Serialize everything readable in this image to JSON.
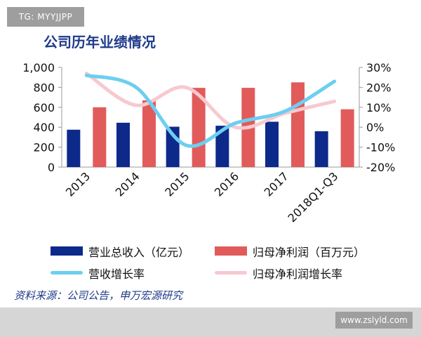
{
  "watermark_top": "TG: MYYJJPP",
  "watermark_bottom": "www.zslyld.com",
  "source_note": "资料来源：公司公告，申万宏源研究",
  "chart_data": {
    "type": "bar",
    "title": "公司历年业绩情况",
    "categories": [
      "2013",
      "2014",
      "2015",
      "2016",
      "2017",
      "2018Q1-Q3"
    ],
    "series": [
      {
        "name": "营业总收入（亿元）",
        "type": "bar",
        "axis": "left",
        "color": "#0d2a8a",
        "values": [
          375,
          445,
          405,
          415,
          455,
          360
        ]
      },
      {
        "name": "归母净利润（百万元）",
        "type": "bar",
        "axis": "left",
        "color": "#e15b5b",
        "values": [
          600,
          670,
          795,
          795,
          850,
          580
        ]
      },
      {
        "name": "营收增长率",
        "type": "line",
        "axis": "right",
        "color": "#6ccff0",
        "values": [
          26,
          20,
          -9,
          2,
          8,
          23
        ]
      },
      {
        "name": "归母净利润增长率",
        "type": "line",
        "axis": "right",
        "color": "#f6c9d0",
        "values": [
          27,
          11,
          20,
          0,
          7,
          13
        ]
      }
    ],
    "left_axis": {
      "min": 0,
      "max": 1000,
      "ticks": [
        "0",
        "200",
        "400",
        "600",
        "800",
        "1,000"
      ]
    },
    "right_axis": {
      "min": -20,
      "max": 30,
      "ticks": [
        "-20%",
        "-10%",
        "0%",
        "10%",
        "20%",
        "30%"
      ]
    },
    "legend_position": "bottom",
    "grid": false
  }
}
